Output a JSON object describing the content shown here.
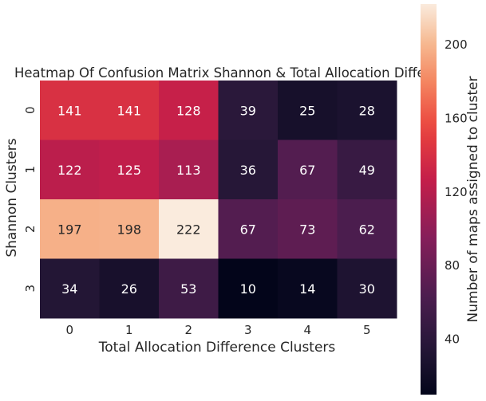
{
  "chart_data": {
    "type": "heatmap",
    "title": "Heatmap Of Confusion Matrix Shannon & Total Allocation Difference Clusters",
    "xlabel": "Total Allocation Difference Clusters",
    "ylabel": "Shannon Clusters",
    "x_categories": [
      "0",
      "1",
      "2",
      "3",
      "4",
      "5"
    ],
    "y_categories": [
      "0",
      "1",
      "2",
      "3"
    ],
    "values": [
      [
        141,
        141,
        128,
        39,
        25,
        28
      ],
      [
        122,
        125,
        113,
        36,
        67,
        49
      ],
      [
        197,
        198,
        222,
        67,
        73,
        62
      ],
      [
        34,
        26,
        53,
        10,
        14,
        30
      ]
    ],
    "colorbar": {
      "label": "Number of maps assigned to cluster",
      "range": [
        10,
        222
      ],
      "ticks": [
        "40",
        "80",
        "120",
        "160",
        "200"
      ],
      "colormap": "rocket"
    },
    "grid": false
  }
}
